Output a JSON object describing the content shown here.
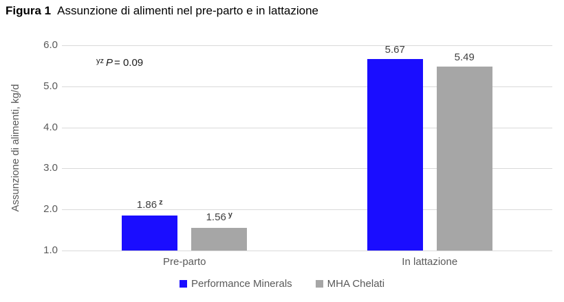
{
  "title": {
    "bold": "Figura 1",
    "rest": "Assunzione di alimenti nel pre-parto e in lattazione"
  },
  "chart_data": {
    "type": "bar",
    "title": "Figura 1 Assunzione di alimenti nel pre-parto e in lattazione",
    "categories": [
      "Pre-parto",
      "In lattazione"
    ],
    "series": [
      {
        "name": "Performance Minerals",
        "color": "#1a0dff",
        "values": [
          1.86,
          5.67
        ],
        "value_labels": [
          "1.86",
          "5.67"
        ],
        "value_superscripts": [
          "z",
          ""
        ]
      },
      {
        "name": "MHA Chelati",
        "color": "#a6a6a6",
        "values": [
          1.56,
          5.49
        ],
        "value_labels": [
          "1.56",
          "5.49"
        ],
        "value_superscripts": [
          "y",
          ""
        ]
      }
    ],
    "ylabel": "Assunzione di alimenti, kg/d",
    "ylim": [
      1.0,
      6.0
    ],
    "yticks": [
      {
        "value": 6.0,
        "label": "6.0"
      },
      {
        "value": 5.0,
        "label": "5.0"
      },
      {
        "value": 4.0,
        "label": "4.0"
      },
      {
        "value": 3.0,
        "label": "3.0"
      },
      {
        "value": 2.0,
        "label": "2.0"
      },
      {
        "value": 1.0,
        "label": "1.0"
      }
    ],
    "grid": true,
    "legend_position": "bottom",
    "annotation": {
      "superscript": "yz",
      "italic": "P",
      "rest": "= 0.09"
    }
  },
  "colors": {
    "grid": "#d9d9d9",
    "axis_text": "#595959",
    "value_text": "#404040",
    "title_text": "#000000",
    "background": "#ffffff"
  }
}
